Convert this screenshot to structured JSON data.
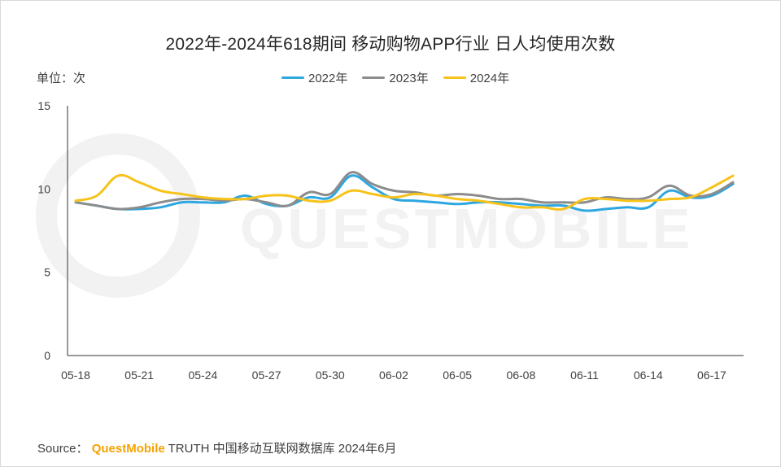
{
  "title": "2022年-2024年618期间 移动购物APP行业 日人均使用次数",
  "unit_label": "单位：次",
  "source": {
    "prefix": "Source：",
    "brand": "QuestMobile",
    "suffix": "TRUTH 中国移动互联网数据库 2024年6月"
  },
  "watermark_text": "QUESTMOBILE",
  "colors": {
    "s2022": "#2ea7e0",
    "s2023": "#8c8c8c",
    "s2024": "#f7c21a",
    "axis": "#333333"
  },
  "chart_data": {
    "type": "line",
    "title": "2022年-2024年618期间 移动购物APP行业 日人均使用次数",
    "ylabel": "单位：次",
    "ylim": [
      0,
      15
    ],
    "yticks": [
      "0",
      "5",
      "10",
      "15"
    ],
    "grid": false,
    "legend_placement": "top-center",
    "tick_labels": [
      "05-18",
      "05-21",
      "05-24",
      "05-27",
      "05-30",
      "06-02",
      "06-05",
      "06-08",
      "06-11",
      "06-14",
      "06-17"
    ],
    "x": [
      "05-18",
      "05-19",
      "05-20",
      "05-21",
      "05-22",
      "05-23",
      "05-24",
      "05-25",
      "05-26",
      "05-27",
      "05-28",
      "05-29",
      "05-30",
      "05-31",
      "06-01",
      "06-02",
      "06-03",
      "06-04",
      "06-05",
      "06-06",
      "06-07",
      "06-08",
      "06-09",
      "06-10",
      "06-11",
      "06-12",
      "06-13",
      "06-14",
      "06-15",
      "06-16",
      "06-17",
      "06-18"
    ],
    "series": [
      {
        "name": "2022年",
        "color": "#2ea7e0",
        "values": [
          9.2,
          9.0,
          8.8,
          8.8,
          8.9,
          9.2,
          9.2,
          9.2,
          9.6,
          9.1,
          9.0,
          9.5,
          9.5,
          10.8,
          10.1,
          9.4,
          9.3,
          9.2,
          9.1,
          9.2,
          9.2,
          9.1,
          9.0,
          9.0,
          8.7,
          8.8,
          8.9,
          8.9,
          9.9,
          9.5,
          9.6,
          10.3
        ]
      },
      {
        "name": "2023年",
        "color": "#8c8c8c",
        "values": [
          9.2,
          9.0,
          8.8,
          8.9,
          9.2,
          9.4,
          9.4,
          9.3,
          9.4,
          9.2,
          9.0,
          9.8,
          9.7,
          11.0,
          10.3,
          9.9,
          9.8,
          9.6,
          9.7,
          9.6,
          9.4,
          9.4,
          9.2,
          9.2,
          9.2,
          9.5,
          9.4,
          9.5,
          10.2,
          9.6,
          9.7,
          10.4
        ]
      },
      {
        "name": "2024年",
        "color": "#f7c21a",
        "values": [
          9.3,
          9.6,
          10.8,
          10.4,
          9.9,
          9.7,
          9.5,
          9.4,
          9.4,
          9.6,
          9.6,
          9.3,
          9.3,
          9.9,
          9.7,
          9.5,
          9.7,
          9.6,
          9.4,
          9.3,
          9.1,
          8.9,
          8.9,
          8.8,
          9.4,
          9.4,
          9.3,
          9.3,
          9.4,
          9.5,
          10.1,
          10.8
        ]
      }
    ]
  }
}
